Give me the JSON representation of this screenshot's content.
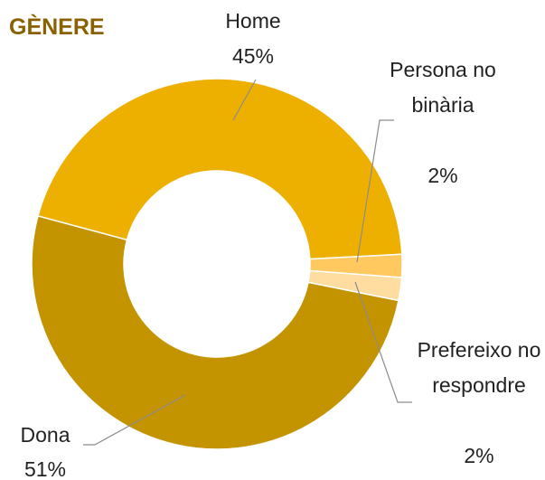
{
  "chart_data": {
    "type": "donut",
    "title": "GÈNERE",
    "categories": [
      "Home",
      "Persona no binària",
      "Prefereixo no respondre",
      "Dona"
    ],
    "values": [
      45,
      2,
      2,
      51
    ],
    "value_labels": [
      "45%",
      "2%",
      "2%",
      "51%"
    ],
    "colors": [
      "#eeb000",
      "#ffc95f",
      "#ffdca0",
      "#c49300"
    ]
  }
}
